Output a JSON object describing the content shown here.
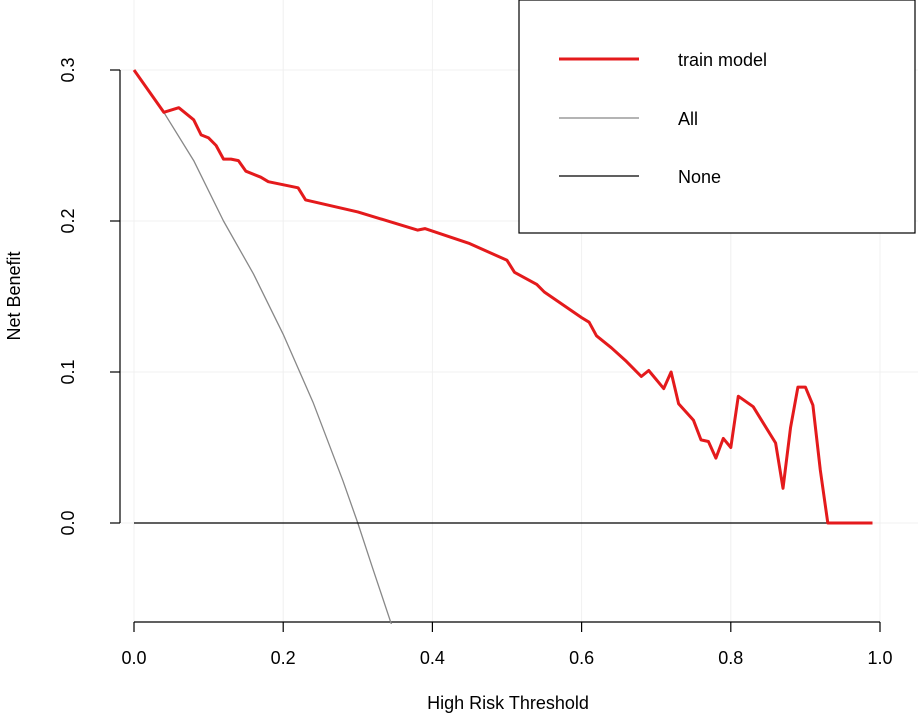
{
  "chart_data": {
    "type": "line",
    "title": "",
    "xlabel": "High Risk Threshold",
    "ylabel": "Net Benefit",
    "xlim": [
      0.0,
      1.0
    ],
    "ylim": [
      -0.065,
      0.34
    ],
    "x_ticks": [
      "0.0",
      "0.2",
      "0.4",
      "0.6",
      "0.8",
      "1.0"
    ],
    "y_ticks": [
      "0.0",
      "0.1",
      "0.2",
      "0.3"
    ],
    "grid": true,
    "legend_position": "top-right",
    "series": [
      {
        "name": "train model",
        "color": "#e41a1c",
        "points": [
          [
            0.0,
            0.3
          ],
          [
            0.04,
            0.272
          ],
          [
            0.06,
            0.275
          ],
          [
            0.08,
            0.267
          ],
          [
            0.09,
            0.257
          ],
          [
            0.1,
            0.255
          ],
          [
            0.11,
            0.25
          ],
          [
            0.12,
            0.241
          ],
          [
            0.13,
            0.241
          ],
          [
            0.14,
            0.24
          ],
          [
            0.15,
            0.233
          ],
          [
            0.17,
            0.229
          ],
          [
            0.18,
            0.226
          ],
          [
            0.22,
            0.222
          ],
          [
            0.23,
            0.214
          ],
          [
            0.3,
            0.206
          ],
          [
            0.38,
            0.194
          ],
          [
            0.39,
            0.195
          ],
          [
            0.45,
            0.185
          ],
          [
            0.5,
            0.174
          ],
          [
            0.51,
            0.166
          ],
          [
            0.54,
            0.158
          ],
          [
            0.55,
            0.153
          ],
          [
            0.6,
            0.136
          ],
          [
            0.61,
            0.133
          ],
          [
            0.62,
            0.124
          ],
          [
            0.64,
            0.116
          ],
          [
            0.66,
            0.107
          ],
          [
            0.68,
            0.097
          ],
          [
            0.69,
            0.101
          ],
          [
            0.7,
            0.095
          ],
          [
            0.71,
            0.089
          ],
          [
            0.72,
            0.1
          ],
          [
            0.73,
            0.079
          ],
          [
            0.75,
            0.068
          ],
          [
            0.76,
            0.055
          ],
          [
            0.77,
            0.054
          ],
          [
            0.78,
            0.043
          ],
          [
            0.79,
            0.056
          ],
          [
            0.8,
            0.05
          ],
          [
            0.81,
            0.084
          ],
          [
            0.83,
            0.077
          ],
          [
            0.86,
            0.053
          ],
          [
            0.87,
            0.023
          ],
          [
            0.88,
            0.063
          ],
          [
            0.89,
            0.09
          ],
          [
            0.9,
            0.09
          ],
          [
            0.91,
            0.078
          ],
          [
            0.92,
            0.035
          ],
          [
            0.93,
            0.0
          ],
          [
            0.99,
            0.0
          ]
        ]
      },
      {
        "name": "All",
        "color": "#888888",
        "points": [
          [
            0.04,
            0.272
          ],
          [
            0.08,
            0.24
          ],
          [
            0.12,
            0.2
          ],
          [
            0.16,
            0.165
          ],
          [
            0.2,
            0.125
          ],
          [
            0.24,
            0.08
          ],
          [
            0.28,
            0.028
          ],
          [
            0.3,
            0.0
          ],
          [
            0.32,
            -0.03
          ],
          [
            0.345,
            -0.067
          ]
        ]
      },
      {
        "name": "None",
        "color": "#000000",
        "points": [
          [
            0.0,
            0.0
          ],
          [
            0.99,
            0.0
          ]
        ]
      }
    ]
  }
}
